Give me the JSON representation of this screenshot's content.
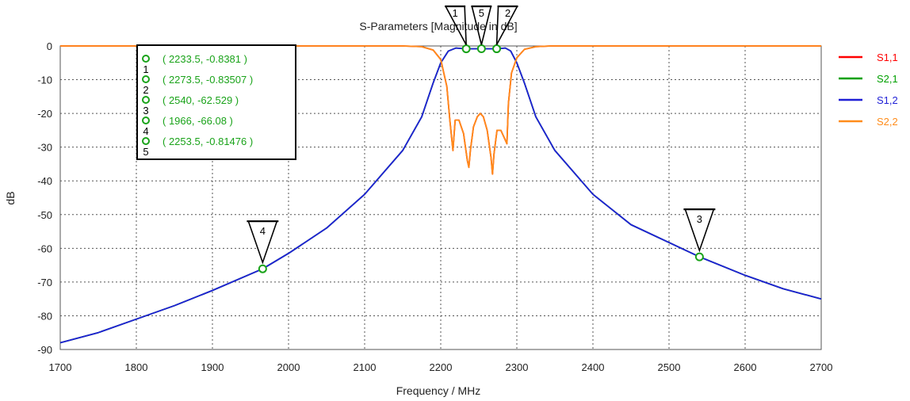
{
  "chart_data": {
    "type": "line",
    "title": "S-Parameters [Magnitude in dB]",
    "xlabel": "Frequency / MHz",
    "ylabel": "dB",
    "xlim": [
      1700,
      2700
    ],
    "ylim": [
      -90,
      0
    ],
    "xticks": [
      "1700",
      "1800",
      "1900",
      "2000",
      "2100",
      "2200",
      "2300",
      "2400",
      "2500",
      "2600",
      "2700"
    ],
    "yticks": [
      "0",
      "-10",
      "-20",
      "-30",
      "-40",
      "-50",
      "-60",
      "-70",
      "-80",
      "-90"
    ],
    "grid": true,
    "legend_position": "right",
    "series": [
      {
        "name": "S1,1",
        "color": "#ff0000",
        "points": [
          [
            1700,
            0
          ],
          [
            2150,
            0
          ],
          [
            2175,
            -0.2
          ],
          [
            2190,
            -1.2
          ],
          [
            2200,
            -4
          ],
          [
            2208,
            -12
          ],
          [
            2212,
            -22
          ],
          [
            2216,
            -31
          ],
          [
            2219,
            -22
          ],
          [
            2224,
            -22
          ],
          [
            2230,
            -26
          ],
          [
            2235,
            -34
          ],
          [
            2237,
            -36
          ],
          [
            2239,
            -31
          ],
          [
            2243,
            -24
          ],
          [
            2248,
            -21
          ],
          [
            2252,
            -20
          ],
          [
            2256,
            -21
          ],
          [
            2261,
            -25
          ],
          [
            2266,
            -33
          ],
          [
            2268,
            -38
          ],
          [
            2270,
            -32
          ],
          [
            2274,
            -25
          ],
          [
            2279,
            -25
          ],
          [
            2283,
            -27
          ],
          [
            2287,
            -29
          ],
          [
            2289,
            -17
          ],
          [
            2293,
            -8
          ],
          [
            2300,
            -3.5
          ],
          [
            2310,
            -1
          ],
          [
            2325,
            -0.2
          ],
          [
            2345,
            0
          ],
          [
            2700,
            0
          ]
        ]
      },
      {
        "name": "S2,1",
        "color": "#00a000",
        "points": [
          [
            1700,
            -88
          ],
          [
            1750,
            -85
          ],
          [
            1800,
            -81
          ],
          [
            1850,
            -77
          ],
          [
            1900,
            -72.5
          ],
          [
            1966,
            -66.08
          ],
          [
            2000,
            -61.5
          ],
          [
            2050,
            -54
          ],
          [
            2100,
            -44
          ],
          [
            2150,
            -31
          ],
          [
            2175,
            -21
          ],
          [
            2190,
            -11
          ],
          [
            2200,
            -5
          ],
          [
            2210,
            -1.5
          ],
          [
            2220,
            -0.6
          ],
          [
            2233.5,
            -0.8381
          ],
          [
            2253.5,
            -0.81476
          ],
          [
            2273.5,
            -0.83507
          ],
          [
            2285,
            -0.6
          ],
          [
            2292,
            -1.5
          ],
          [
            2300,
            -5
          ],
          [
            2310,
            -11
          ],
          [
            2325,
            -21
          ],
          [
            2350,
            -31
          ],
          [
            2400,
            -44
          ],
          [
            2450,
            -53
          ],
          [
            2540,
            -62.529
          ],
          [
            2600,
            -68
          ],
          [
            2650,
            -72
          ],
          [
            2700,
            -75
          ]
        ]
      },
      {
        "name": "S1,2",
        "color": "#1f1fd6",
        "points": [
          [
            1700,
            -88
          ],
          [
            1750,
            -85
          ],
          [
            1800,
            -81
          ],
          [
            1850,
            -77
          ],
          [
            1900,
            -72.5
          ],
          [
            1966,
            -66.08
          ],
          [
            2000,
            -61.5
          ],
          [
            2050,
            -54
          ],
          [
            2100,
            -44
          ],
          [
            2150,
            -31
          ],
          [
            2175,
            -21
          ],
          [
            2190,
            -11
          ],
          [
            2200,
            -5
          ],
          [
            2210,
            -1.5
          ],
          [
            2220,
            -0.6
          ],
          [
            2233.5,
            -0.8381
          ],
          [
            2253.5,
            -0.81476
          ],
          [
            2273.5,
            -0.83507
          ],
          [
            2285,
            -0.6
          ],
          [
            2292,
            -1.5
          ],
          [
            2300,
            -5
          ],
          [
            2310,
            -11
          ],
          [
            2325,
            -21
          ],
          [
            2350,
            -31
          ],
          [
            2400,
            -44
          ],
          [
            2450,
            -53
          ],
          [
            2540,
            -62.529
          ],
          [
            2600,
            -68
          ],
          [
            2650,
            -72
          ],
          [
            2700,
            -75
          ]
        ]
      },
      {
        "name": "S2,2",
        "color": "#ff8c1a",
        "points": [
          [
            1700,
            0
          ],
          [
            2150,
            0
          ],
          [
            2175,
            -0.2
          ],
          [
            2190,
            -1.2
          ],
          [
            2200,
            -4
          ],
          [
            2208,
            -12
          ],
          [
            2212,
            -22
          ],
          [
            2216,
            -31
          ],
          [
            2219,
            -22
          ],
          [
            2224,
            -22
          ],
          [
            2230,
            -26
          ],
          [
            2235,
            -34
          ],
          [
            2237,
            -36
          ],
          [
            2239,
            -31
          ],
          [
            2243,
            -24
          ],
          [
            2248,
            -21
          ],
          [
            2252,
            -20
          ],
          [
            2256,
            -21
          ],
          [
            2261,
            -25
          ],
          [
            2266,
            -33
          ],
          [
            2268,
            -38
          ],
          [
            2270,
            -32
          ],
          [
            2274,
            -25
          ],
          [
            2279,
            -25
          ],
          [
            2283,
            -27
          ],
          [
            2287,
            -29
          ],
          [
            2289,
            -17
          ],
          [
            2293,
            -8
          ],
          [
            2300,
            -3.5
          ],
          [
            2310,
            -1
          ],
          [
            2325,
            -0.2
          ],
          [
            2345,
            0
          ],
          [
            2700,
            0
          ]
        ]
      }
    ],
    "markers": [
      {
        "id": "1",
        "x": 2233.5,
        "y": -0.8381,
        "label": "( 2233.5, -0.8381 )"
      },
      {
        "id": "2",
        "x": 2273.5,
        "y": -0.83507,
        "label": "( 2273.5, -0.83507 )"
      },
      {
        "id": "3",
        "x": 2540,
        "y": -62.529,
        "label": "( 2540, -62.529 )"
      },
      {
        "id": "4",
        "x": 1966,
        "y": -66.08,
        "label": "( 1966, -66.08 )"
      },
      {
        "id": "5",
        "x": 2253.5,
        "y": -0.81476,
        "label": "( 2253.5, -0.81476 )"
      }
    ],
    "marker_color": "#1aa31a"
  }
}
